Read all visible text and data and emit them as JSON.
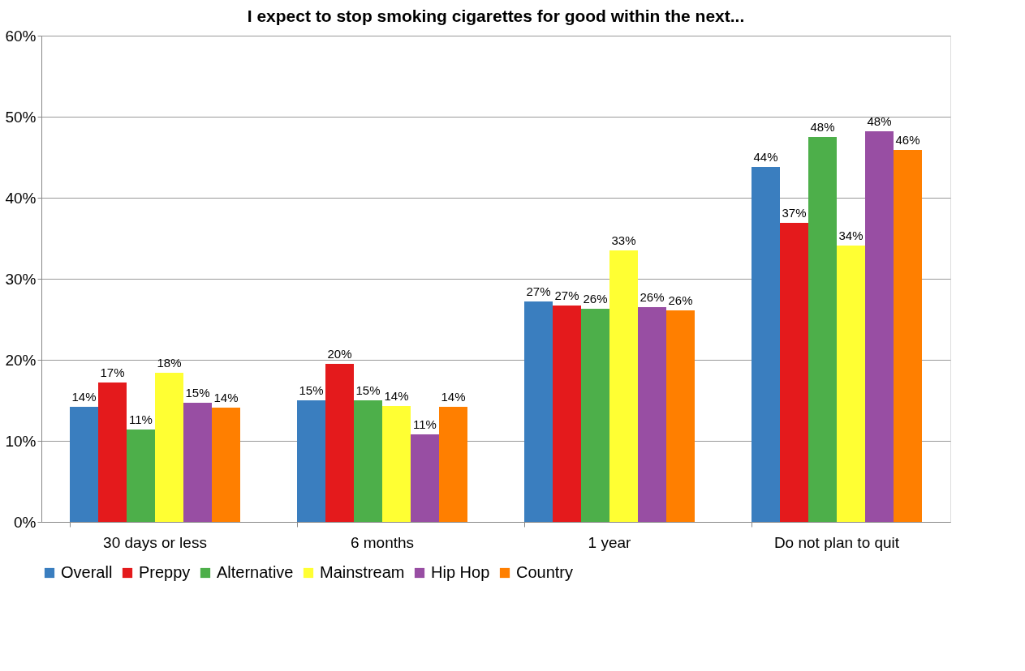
{
  "chart_data": {
    "type": "bar",
    "title": "I expect to stop smoking cigarettes for good within the next...",
    "categories": [
      "30 days or less",
      "6 months",
      "1 year",
      "Do not plan to quit"
    ],
    "series": [
      {
        "name": "Overall",
        "color": "#3a7ebf",
        "values": [
          14.2,
          15.0,
          27.2,
          43.8
        ],
        "value_labels": [
          "14%",
          "15%",
          "27%",
          "44%"
        ]
      },
      {
        "name": "Preppy",
        "color": "#e41a1c",
        "values": [
          17.2,
          19.5,
          26.7,
          36.9
        ],
        "value_labels": [
          "17%",
          "20%",
          "27%",
          "37%"
        ]
      },
      {
        "name": "Alternative",
        "color": "#4daf4a",
        "values": [
          11.4,
          15.0,
          26.3,
          47.5
        ],
        "value_labels": [
          "11%",
          "15%",
          "26%",
          "48%"
        ]
      },
      {
        "name": "Mainstream",
        "color": "#ffff33",
        "values": [
          18.4,
          14.3,
          33.5,
          34.1
        ],
        "value_labels": [
          "18%",
          "14%",
          "33%",
          "34%"
        ]
      },
      {
        "name": "Hip Hop",
        "color": "#984ea3",
        "values": [
          14.7,
          10.8,
          26.5,
          48.2
        ],
        "value_labels": [
          "15%",
          "11%",
          "26%",
          "48%"
        ]
      },
      {
        "name": "Country",
        "color": "#ff7f00",
        "values": [
          14.1,
          14.2,
          26.1,
          45.9
        ],
        "value_labels": [
          "14%",
          "14%",
          "26%",
          "46%"
        ]
      }
    ],
    "ylim": [
      0,
      60
    ],
    "yticks": [
      {
        "value": 0,
        "label": "0%"
      },
      {
        "value": 10,
        "label": "10%"
      },
      {
        "value": 20,
        "label": "20%"
      },
      {
        "value": 30,
        "label": "30%"
      },
      {
        "value": 40,
        "label": "40%"
      },
      {
        "value": 50,
        "label": "50%"
      },
      {
        "value": 60,
        "label": "60%"
      }
    ],
    "grid": "y",
    "legend": "bottom"
  }
}
